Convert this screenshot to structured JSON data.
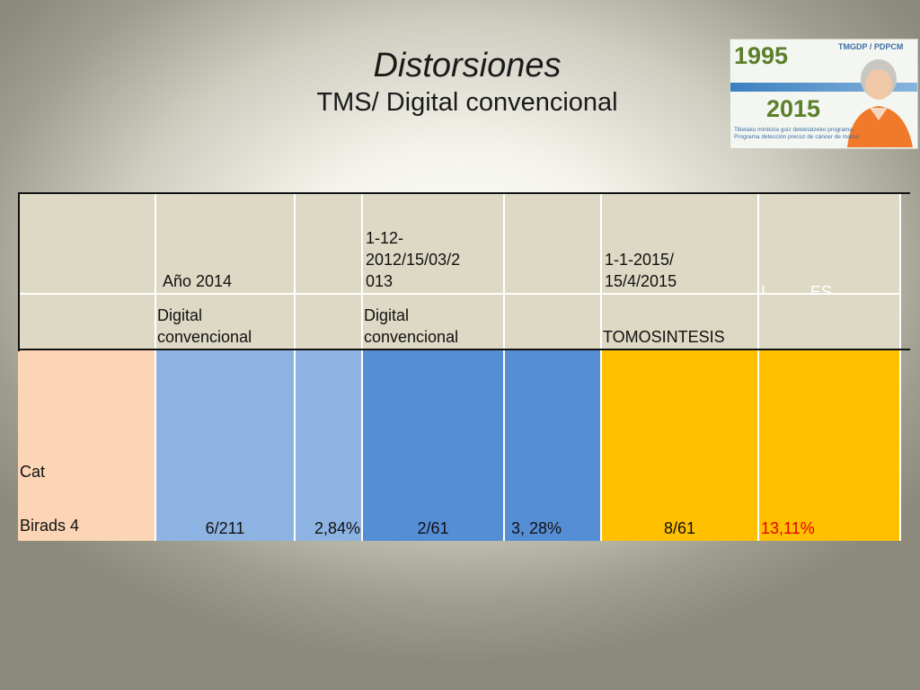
{
  "slide": {
    "title": "Distorsiones",
    "subtitle": "TMS/ Digital  convencional"
  },
  "logo": {
    "year_start": "1995",
    "year_end": "2015",
    "tag": "TMGDP / PDPCM",
    "line1": "Titietako minbizia goiz detektatzeko programa",
    "line2": "Programa detección precoz de cáncer de mama"
  },
  "table": {
    "header_row1": [
      "",
      "Año 2014",
      "",
      "1-12-\n2012/15/03/2\n013",
      "",
      "1-1-2015/\n15/4/2015",
      "I..........ES"
    ],
    "header_row2": [
      "",
      "Digital\nconvencional",
      "",
      "Digital\nconvencional",
      "",
      "TOMOSINTESIS",
      ""
    ],
    "row_label": "Cat\n\nBirads 4",
    "values": [
      "6/211",
      "2,84%",
      "2/61",
      "3, 28%",
      "8/61",
      "13,11%"
    ]
  },
  "colors": {
    "header_bg": "#ddd9c4",
    "peach": "#fbd5b5",
    "light_blue": "#8db3e2",
    "blue": "#558ed5",
    "gold": "#ffc000",
    "highlight_red": "#e30000"
  }
}
